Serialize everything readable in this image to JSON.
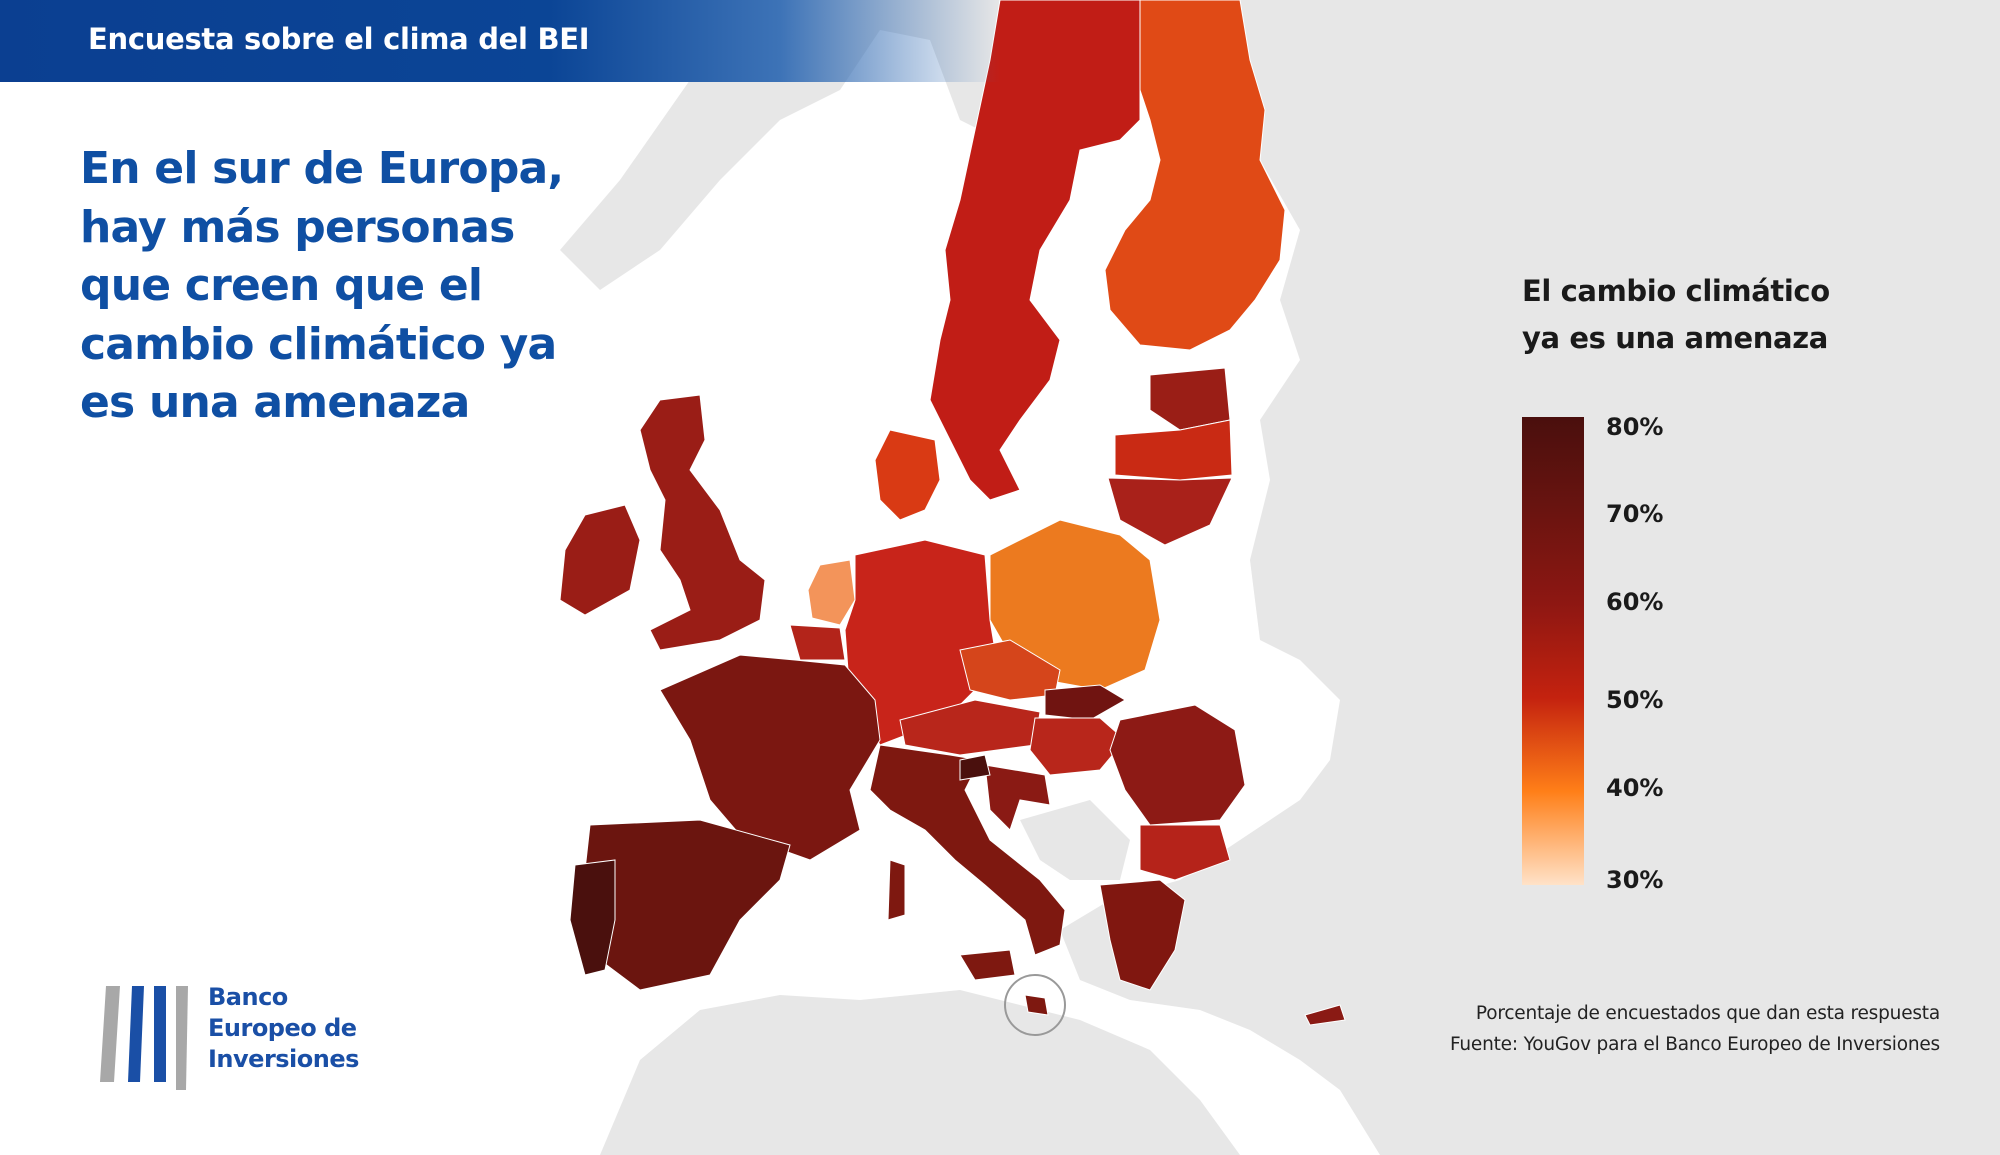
{
  "header": {
    "title": "Encuesta sobre el clima del BEI"
  },
  "headline": {
    "lines": [
      "En el sur de Europa,",
      "hay más personas",
      "que creen que el",
      "cambio climático ya",
      "es una amenaza"
    ]
  },
  "legend": {
    "title_lines": [
      "El cambio climático",
      "ya es una amenaza"
    ],
    "ticks": [
      "80%",
      "70%",
      "60%",
      "50%",
      "40%",
      "30%"
    ],
    "colors": {
      "top": "#4a0f0d",
      "bottom": "#ffe2c8"
    }
  },
  "footnote": {
    "line1": "Porcentaje de encuestados que dan esta respuesta",
    "line2": "Fuente: YouGov para el Banco Europeo de Inversiones"
  },
  "logo": {
    "lines": [
      "Banco",
      "Europeo de",
      "Inversiones"
    ]
  },
  "colors": {
    "brand_blue": "#0f4fa3",
    "header_blue": "#0b3f91",
    "land_grey": "#e6e6e6",
    "sea": "#ffffff"
  }
}
